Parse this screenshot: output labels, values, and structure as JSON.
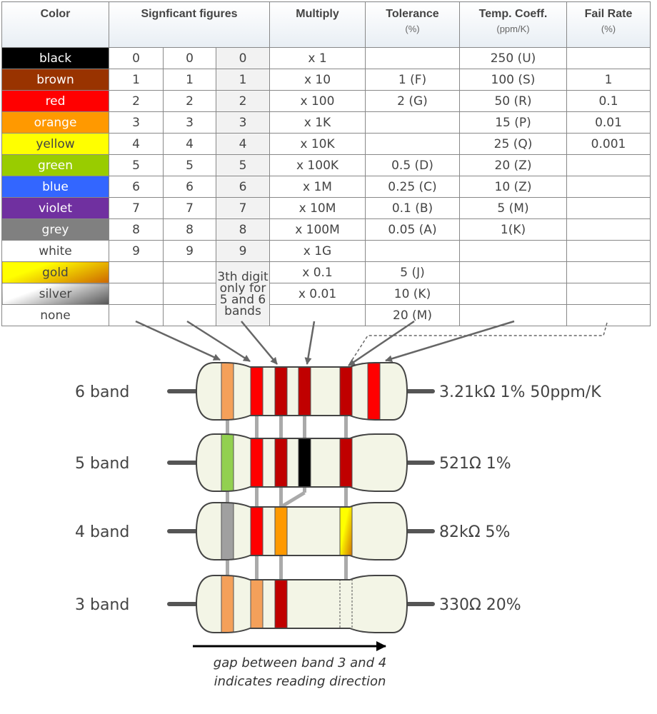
{
  "headers": [
    {
      "label": "Color",
      "sub": ""
    },
    {
      "label": "Signficant figures",
      "sub": ""
    },
    {
      "label": "Multiply",
      "sub": ""
    },
    {
      "label": "Tolerance",
      "sub": "(%)"
    },
    {
      "label": "Temp. Coeff.",
      "sub": "(ppm/K)"
    },
    {
      "label": "Fail Rate",
      "sub": "(%)"
    }
  ],
  "rows": [
    {
      "color": "black",
      "bg": "#000000",
      "fg": "#ffffff",
      "d1": "0",
      "d2": "0",
      "d3": "0",
      "mult": "x 1",
      "tol": "",
      "temp": "250 (U)",
      "fail": ""
    },
    {
      "color": "brown",
      "bg": "#993300",
      "fg": "#ffffff",
      "d1": "1",
      "d2": "1",
      "d3": "1",
      "mult": "x 10",
      "tol": "1 (F)",
      "temp": "100 (S)",
      "fail": "1"
    },
    {
      "color": "red",
      "bg": "#ff0000",
      "fg": "#ffffff",
      "d1": "2",
      "d2": "2",
      "d3": "2",
      "mult": "x 100",
      "tol": "2 (G)",
      "temp": "50 (R)",
      "fail": "0.1"
    },
    {
      "color": "orange",
      "bg": "#ff9900",
      "fg": "#ffffff",
      "d1": "3",
      "d2": "3",
      "d3": "3",
      "mult": "x 1K",
      "tol": "",
      "temp": "15 (P)",
      "fail": "0.01"
    },
    {
      "color": "yellow",
      "bg": "#ffff00",
      "fg": "#444444",
      "d1": "4",
      "d2": "4",
      "d3": "4",
      "mult": "x 10K",
      "tol": "",
      "temp": "25 (Q)",
      "fail": "0.001"
    },
    {
      "color": "green",
      "bg": "#99cc00",
      "fg": "#ffffff",
      "d1": "5",
      "d2": "5",
      "d3": "5",
      "mult": "x 100K",
      "tol": "0.5 (D)",
      "temp": "20 (Z)",
      "fail": ""
    },
    {
      "color": "blue",
      "bg": "#3366ff",
      "fg": "#ffffff",
      "d1": "6",
      "d2": "6",
      "d3": "6",
      "mult": "x 1M",
      "tol": "0.25 (C)",
      "temp": "10 (Z)",
      "fail": ""
    },
    {
      "color": "violet",
      "bg": "#7030a0",
      "fg": "#ffffff",
      "d1": "7",
      "d2": "7",
      "d3": "7",
      "mult": "x 10M",
      "tol": "0.1 (B)",
      "temp": "5 (M)",
      "fail": ""
    },
    {
      "color": "grey",
      "bg": "#808080",
      "fg": "#ffffff",
      "d1": "8",
      "d2": "8",
      "d3": "8",
      "mult": "x 100M",
      "tol": "0.05 (A)",
      "temp": "1(K)",
      "fail": ""
    },
    {
      "color": "white",
      "bg": "#ffffff",
      "fg": "#444444",
      "d1": "9",
      "d2": "9",
      "d3": "9",
      "mult": "x 1G",
      "tol": "",
      "temp": "",
      "fail": ""
    },
    {
      "color": "gold",
      "bg": "linear-gradient(160deg,#ffff00 30%,#cc6600)",
      "fg": "#444444",
      "d1": "",
      "d2": "",
      "mult": "x 0.1",
      "tol": "5 (J)",
      "temp": "",
      "fail": ""
    },
    {
      "color": "silver",
      "bg": "linear-gradient(160deg,#ffffff 30%,#555555)",
      "fg": "#444444",
      "d1": "",
      "d2": "",
      "mult": "x 0.01",
      "tol": "10 (K)",
      "temp": "",
      "fail": ""
    },
    {
      "color": "none",
      "bg": "#ffffff",
      "fg": "#444444",
      "d1": "",
      "d2": "",
      "mult": "",
      "tol": "20 (M)",
      "temp": "",
      "fail": ""
    }
  ],
  "note": "3th digit only for 5 and 6 bands",
  "resistors": [
    {
      "label": "6 band",
      "value": "3.21kΩ 1% 50ppm/K",
      "bands": [
        "#f4a05a",
        "#ff0000",
        "#c00000",
        "#c00000",
        "#c00000",
        "#ff0000"
      ]
    },
    {
      "label": "5 band",
      "value": "521Ω 1%",
      "bands": [
        "#92d050",
        "#ff0000",
        "#c00000",
        "#000000",
        "#c00000",
        null
      ]
    },
    {
      "label": "4 band",
      "value": "82kΩ 5%",
      "bands": [
        "#a0a0a0",
        "#ff0000",
        "#ff9900",
        null,
        "gold",
        null
      ]
    },
    {
      "label": "3 band",
      "value": "330Ω 20%",
      "bands": [
        "#f4a05a",
        "#f4a05a",
        "#c00000",
        null,
        "none",
        null
      ]
    }
  ],
  "caption": [
    "gap between band 3 and 4",
    "indicates reading direction"
  ]
}
